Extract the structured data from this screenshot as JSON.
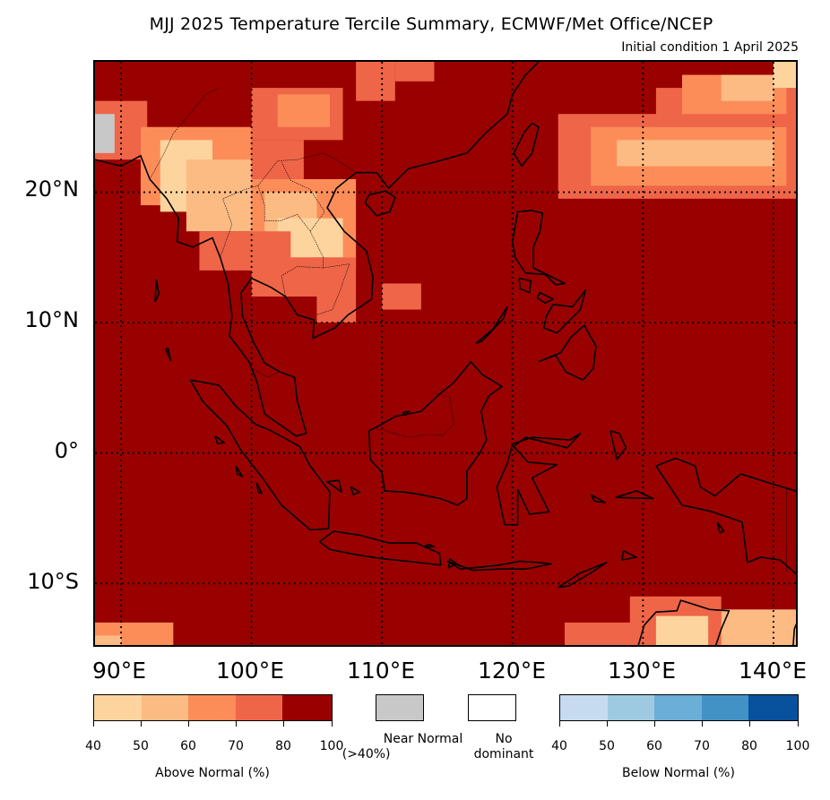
{
  "title": "MJJ 2025 Temperature Tercile Summary, ECMWF/Met Office/NCEP",
  "subtitle": "Initial condition 1 April 2025",
  "map": {
    "lat_labels": [
      "20°N",
      "10°N",
      "0°",
      "10°S"
    ],
    "lon_labels": [
      "90°E",
      "100°E",
      "110°E",
      "120°E",
      "130°E",
      "140°E"
    ],
    "extent": {
      "lon_min": 88,
      "lon_max": 142,
      "lat_min": -15,
      "lat_max": 30
    },
    "dominant_color": "#990000"
  },
  "legend": {
    "above": {
      "title": "Above Normal (%)",
      "ticks": [
        "40",
        "50",
        "60",
        "70",
        "80",
        "100"
      ],
      "colors": [
        "#fdd49e",
        "#fdbb84",
        "#fc8d59",
        "#ef6548",
        "#990000"
      ]
    },
    "near": {
      "label_line1": "Near Normal",
      "label_line2": "(>40%)",
      "color": "#c8c8c8"
    },
    "none": {
      "label_line1": "No",
      "label_line2": "dominant",
      "color": "#ffffff"
    },
    "below": {
      "title": "Below Normal (%)",
      "ticks": [
        "40",
        "50",
        "60",
        "70",
        "80",
        "100"
      ],
      "colors": [
        "#c6dbef",
        "#9ecae1",
        "#6baed6",
        "#4292c6",
        "#08519c"
      ]
    }
  }
}
